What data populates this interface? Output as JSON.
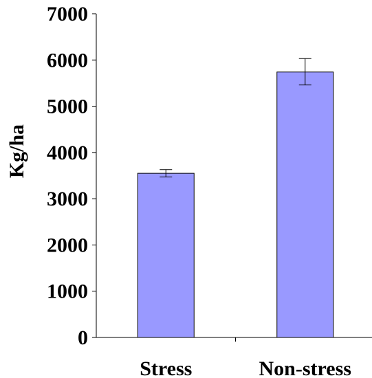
{
  "chart_data": {
    "type": "bar",
    "title": "",
    "xlabel": "",
    "ylabel": "Kg/ha",
    "categories": [
      "Stress",
      "Non-stress"
    ],
    "values": [
      3550,
      5740
    ],
    "error_bars": [
      {
        "low": 3470,
        "high": 3630
      },
      {
        "low": 5460,
        "high": 6030
      }
    ],
    "ylim": [
      0,
      7000
    ],
    "yticks": [
      0,
      1000,
      2000,
      3000,
      4000,
      5000,
      6000,
      7000
    ],
    "ytick_labels": [
      "0",
      "1000",
      "2000",
      "3000",
      "4000",
      "5000",
      "6000",
      "7000"
    ],
    "grid": false,
    "legend": "none",
    "colors": {
      "bar_fill": "#9999ff",
      "bar_stroke": "#000000",
      "axis": "#000000",
      "text": "#000000"
    }
  }
}
